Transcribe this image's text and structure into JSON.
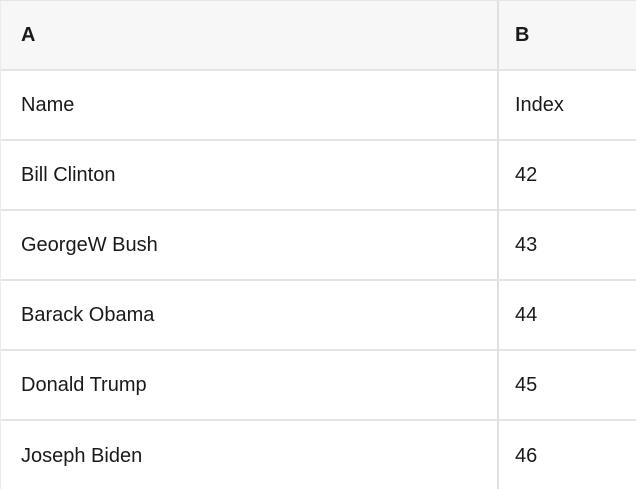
{
  "spreadsheet": {
    "column_headers": [
      "A",
      "B"
    ],
    "rows": [
      [
        "Name",
        "Index"
      ],
      [
        "Bill Clinton",
        "42"
      ],
      [
        "GeorgeW Bush",
        "43"
      ],
      [
        "Barack Obama",
        "44"
      ],
      [
        "Donald Trump",
        "45"
      ],
      [
        "Joseph Biden",
        "46"
      ]
    ],
    "colors": {
      "header_background": "#f7f7f7",
      "gridline": "#e4e4e4",
      "text": "#1a1a1a",
      "background": "#ffffff"
    }
  }
}
